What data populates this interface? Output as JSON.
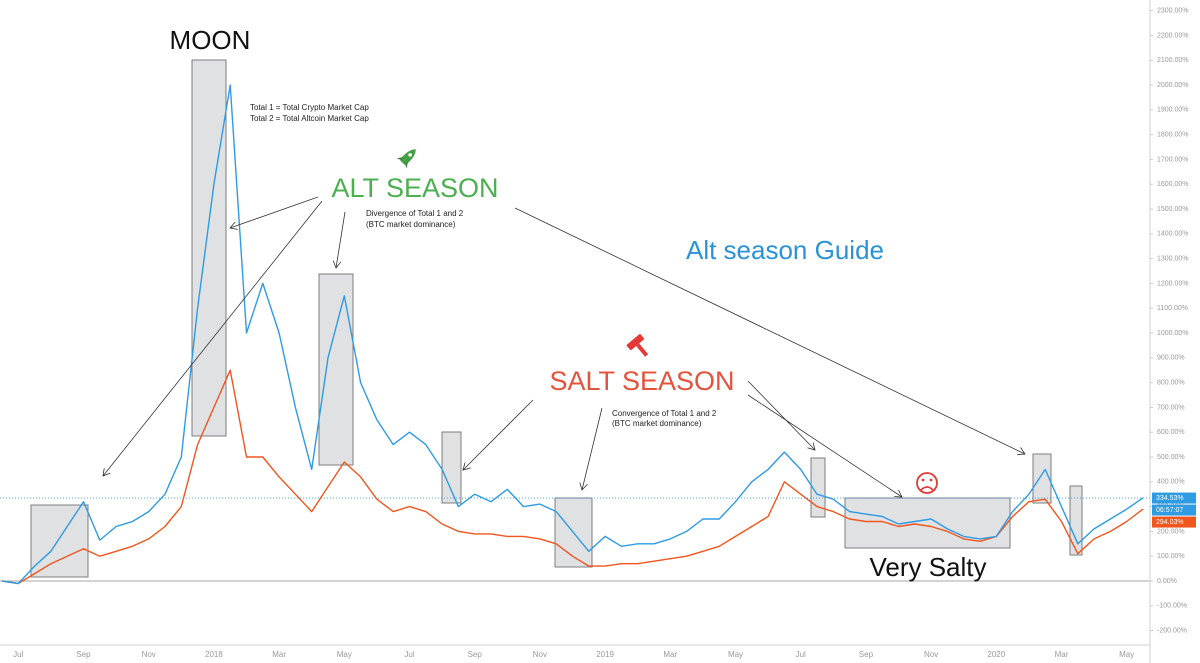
{
  "chart_data": {
    "type": "line",
    "categories": [
      null,
      "Jul",
      null,
      null,
      null,
      "Sep",
      null,
      null,
      null,
      "Nov",
      null,
      null,
      null,
      "2018",
      null,
      null,
      null,
      "Mar",
      null,
      null,
      null,
      "May",
      null,
      null,
      null,
      "Jul",
      null,
      null,
      null,
      "Sep",
      null,
      null,
      null,
      "Nov",
      null,
      null,
      null,
      "2019",
      null,
      null,
      null,
      "Mar",
      null,
      null,
      null,
      "May",
      null,
      null,
      null,
      "Jul",
      null,
      null,
      null,
      "Sep",
      null,
      null,
      null,
      "Nov",
      null,
      null,
      null,
      "2020",
      null,
      null,
      null,
      "Mar",
      null,
      null,
      null,
      "May",
      null
    ],
    "series": [
      {
        "color": "#2f9be3",
        "current_value": 334.53,
        "current_label": "334.53%",
        "countdown": "06:57:07",
        "values": [
          0,
          -10,
          60,
          120,
          220,
          320,
          165,
          220,
          240,
          280,
          350,
          500,
          1100,
          1600,
          2000,
          1000,
          1200,
          1000,
          700,
          450,
          900,
          1150,
          800,
          650,
          550,
          600,
          550,
          450,
          300,
          350,
          320,
          370,
          300,
          310,
          280,
          200,
          120,
          180,
          140,
          150,
          150,
          170,
          200,
          250,
          250,
          320,
          400,
          450,
          520,
          450,
          350,
          330,
          280,
          270,
          260,
          230,
          240,
          250,
          210,
          180,
          170,
          180,
          280,
          350,
          450,
          300,
          150,
          210,
          250,
          290,
          335
        ]
      },
      {
        "color": "#f0561d",
        "current_value": 294.03,
        "current_label": "294.03%",
        "values": [
          0,
          -10,
          30,
          70,
          100,
          130,
          100,
          120,
          140,
          170,
          220,
          300,
          550,
          700,
          850,
          500,
          500,
          420,
          350,
          280,
          380,
          480,
          420,
          330,
          280,
          300,
          280,
          230,
          200,
          190,
          190,
          180,
          180,
          170,
          150,
          100,
          60,
          60,
          70,
          70,
          80,
          90,
          100,
          120,
          140,
          180,
          220,
          260,
          400,
          350,
          300,
          280,
          250,
          240,
          240,
          220,
          230,
          220,
          200,
          170,
          160,
          180,
          260,
          320,
          330,
          240,
          110,
          170,
          200,
          240,
          290
        ]
      }
    ],
    "ylim": [
      -258,
      2343
    ],
    "yticks": [
      {
        "value": -200,
        "label": "-200.00%"
      },
      {
        "value": -100,
        "label": "-100.00%"
      },
      {
        "value": 0,
        "label": "0.00%"
      },
      {
        "value": 100,
        "label": "100.00%"
      },
      {
        "value": 200,
        "label": "200.00%"
      },
      {
        "value": 300,
        "label": "300.00%"
      },
      {
        "value": 400,
        "label": "400.00%"
      },
      {
        "value": 500,
        "label": "500.00%"
      },
      {
        "value": 600,
        "label": "600.00%"
      },
      {
        "value": 700,
        "label": "700.00%"
      },
      {
        "value": 800,
        "label": "800.00%"
      },
      {
        "value": 900,
        "label": "900.00%"
      },
      {
        "value": 1000,
        "label": "1000.00%"
      },
      {
        "value": 1100,
        "label": "1100.00%"
      },
      {
        "value": 1200,
        "label": "1200.00%"
      },
      {
        "value": 1300,
        "label": "1300.00%"
      },
      {
        "value": 1400,
        "label": "1400.00%"
      },
      {
        "value": 1500,
        "label": "1500.00%"
      },
      {
        "value": 1600,
        "label": "1600.00%"
      },
      {
        "value": 1700,
        "label": "1700.00%"
      },
      {
        "value": 1800,
        "label": "1800.00%"
      },
      {
        "value": 1900,
        "label": "1900.00%"
      },
      {
        "value": 2000,
        "label": "2000.00%"
      },
      {
        "value": 2100,
        "label": "2100.00%"
      },
      {
        "value": 2200,
        "label": "2200.00%"
      },
      {
        "value": 2300,
        "label": "2300.00%"
      }
    ],
    "grid": false,
    "annotations": {
      "moon": "MOON",
      "note_total1": "Total 1 = Total Crypto Market Cap",
      "note_total2": "Total 2 = Total Altcoin Market Cap",
      "alt_season": "ALT SEASON",
      "divergence": "Divergence of Total 1 and 2",
      "divergence_sub": "(BTC market dominance)",
      "guide": "Alt season Guide",
      "salt_season": "SALT SEASON",
      "convergence": "Convergence of Total 1 and 2",
      "convergence_sub": "(BTC market dominance)",
      "very_salty": "Very Salty"
    }
  }
}
